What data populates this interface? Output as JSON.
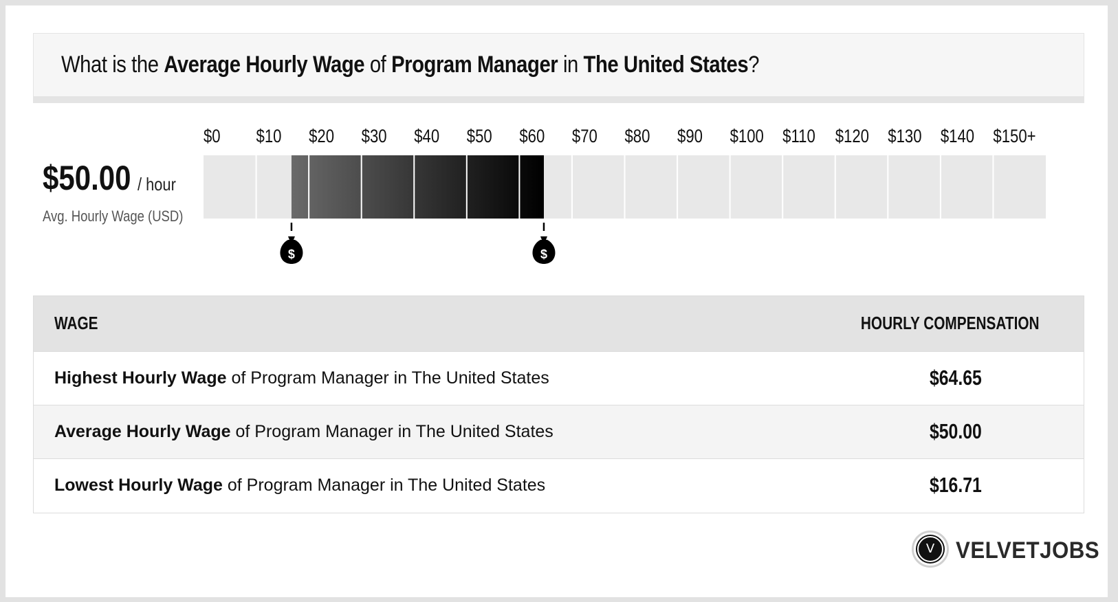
{
  "header": {
    "prefix": "What is the",
    "metric": "Average Hourly Wage",
    "of": "of",
    "job": "Program Manager",
    "in": "in",
    "location": "The United States",
    "suffix": "?"
  },
  "summary": {
    "value": "$50.00",
    "unit": "/ hour",
    "caption": "Avg. Hourly Wage (USD)"
  },
  "chart_data": {
    "type": "bar",
    "title": "",
    "tick_labels": [
      "$0",
      "$10",
      "$20",
      "$30",
      "$40",
      "$50",
      "$60",
      "$70",
      "$80",
      "$90",
      "$100",
      "$110",
      "$120",
      "$130",
      "$140",
      "$150+"
    ],
    "axis_range": [
      0,
      160
    ],
    "range_low": 16.71,
    "range_high": 64.65,
    "average": 50.0,
    "marker_icon": "money-bag-icon",
    "marker_symbol": "$",
    "colors": {
      "track": "#e8e8e8",
      "range_start": "#6a6a6a",
      "range_end": "#000000",
      "marker": "#000000"
    }
  },
  "table": {
    "col_left": "WAGE",
    "col_right": "HOURLY COMPENSATION",
    "rows": [
      {
        "bold": "Highest Hourly Wage",
        "rest": " of Program Manager in The United States",
        "value": "$64.65"
      },
      {
        "bold": "Average Hourly Wage",
        "rest": " of Program Manager in The United States",
        "value": "$50.00"
      },
      {
        "bold": "Lowest Hourly Wage",
        "rest": " of Program Manager in The United States",
        "value": "$16.71"
      }
    ]
  },
  "logo": {
    "icon_letter": "V",
    "text": "VELVETJOBS"
  }
}
